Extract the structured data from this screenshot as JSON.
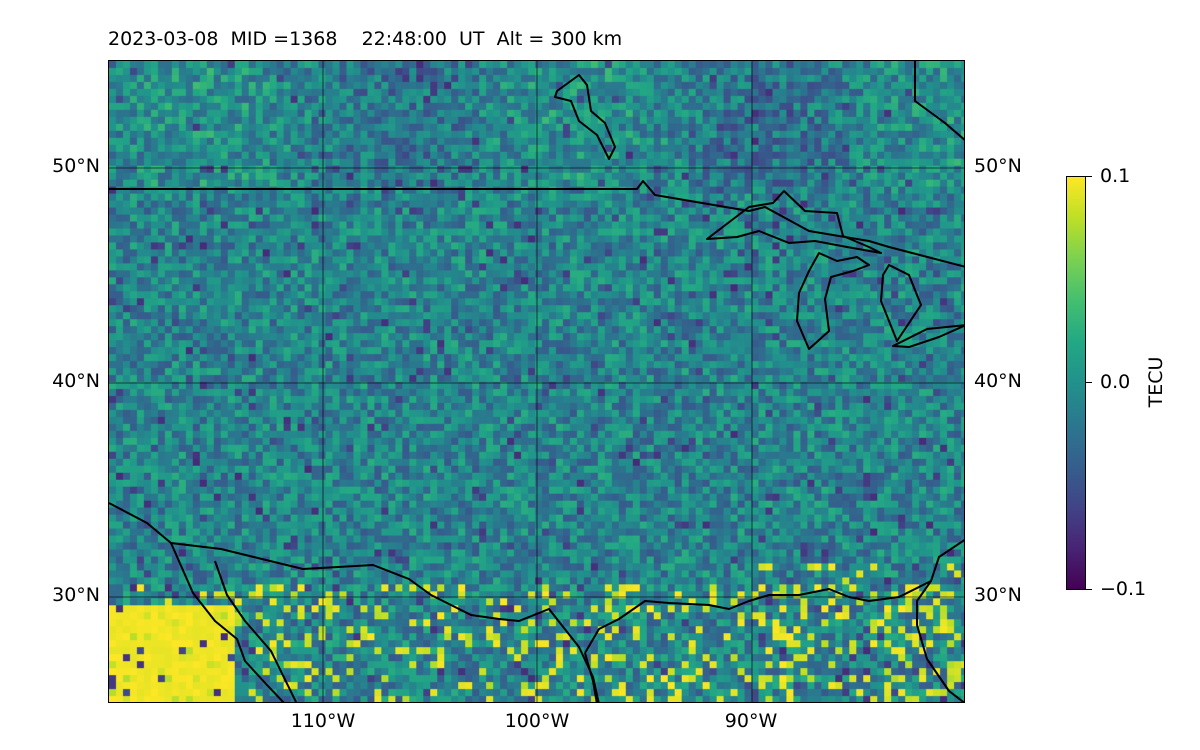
{
  "map": {
    "title": "2023-03-08  MID =1368    22:48:00  UT  Alt = 300 km",
    "colorbar": {
      "unit": "TECU",
      "ticks": [
        "0.1",
        "0.0",
        "−0.1"
      ],
      "min": -0.1,
      "max": 0.1,
      "colormap": "viridis"
    },
    "lat_labels": [
      "50°N",
      "40°N",
      "30°N"
    ],
    "lon_labels": [
      "110°W",
      "100°W",
      "90°W"
    ]
  },
  "chart_data": {
    "type": "heatmap",
    "title": "2023-03-08  MID =1368    22:48:00  UT  Alt = 300 km",
    "lon_range": [
      -120,
      -80
    ],
    "lat_range": [
      25,
      55
    ],
    "lat_ticks": [
      30,
      40,
      50
    ],
    "lon_ticks": [
      -110,
      -100,
      -90
    ],
    "colorbar_range": [
      -0.1,
      0.1
    ],
    "colorbar_label": "TECU",
    "grid": true,
    "colors": {
      "low": "#440154",
      "mid": "#21918c",
      "high": "#fde725"
    }
  }
}
